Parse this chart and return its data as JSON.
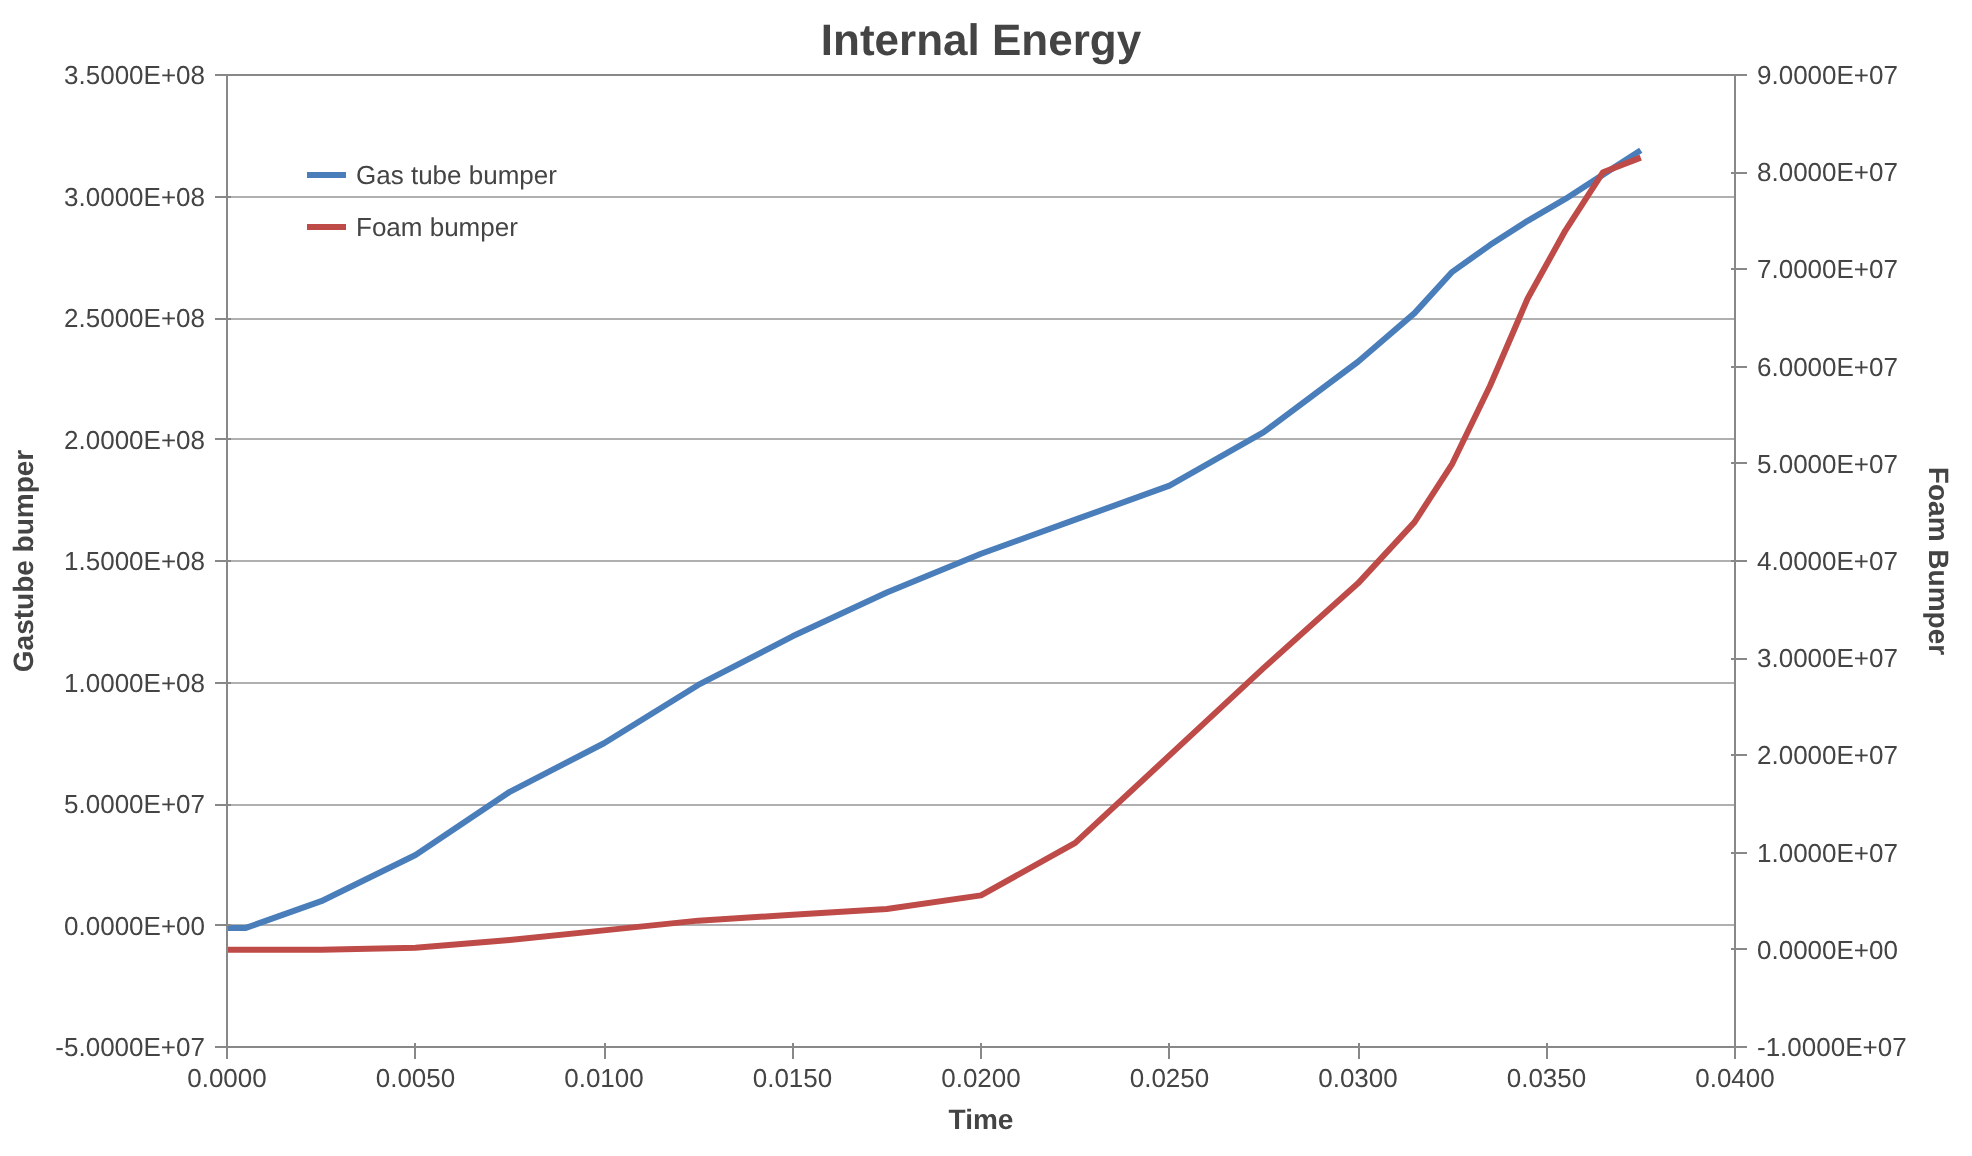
{
  "chart_data": {
    "type": "line",
    "title": "Internal Energy",
    "xlabel": "Time",
    "ylabel": "Gastube bumper",
    "y2label": "Foam Bumper",
    "x": [
      0,
      0.0005,
      0.0025,
      0.005,
      0.0075,
      0.01,
      0.0125,
      0.015,
      0.0175,
      0.02,
      0.0225,
      0.025,
      0.0275,
      0.03,
      0.0315,
      0.0325,
      0.0335,
      0.0345,
      0.0355,
      0.0365,
      0.0375
    ],
    "series": [
      {
        "name": "Gas tube bumper",
        "color": "#4a7ebb",
        "values": [
          -1000000,
          -1000000,
          10000000,
          29000000,
          55000000,
          75000000,
          99000000,
          119000000,
          137000000,
          153000000,
          167000000,
          181000000,
          203000000,
          232000000,
          252000000,
          269000000,
          280000000,
          290000000,
          299000000,
          309000000,
          319000000
        ]
      },
      {
        "name": "Foam bumper",
        "color": "#be4b48",
        "axis": "y2",
        "values": [
          0,
          0,
          0,
          200000,
          1000000,
          2000000,
          3000000,
          3600000,
          4200000,
          5600000,
          11000000,
          20000000,
          29000000,
          37700000,
          44000000,
          50000000,
          58000000,
          67000000,
          74000000,
          80000000,
          81500000
        ]
      }
    ],
    "xlim": [
      0,
      0.04
    ],
    "xticks": [
      {
        "value": 0,
        "label": "0.0000"
      },
      {
        "value": 0.005,
        "label": "0.0050"
      },
      {
        "value": 0.01,
        "label": "0.0100"
      },
      {
        "value": 0.015,
        "label": "0.0150"
      },
      {
        "value": 0.02,
        "label": "0.0200"
      },
      {
        "value": 0.025,
        "label": "0.0250"
      },
      {
        "value": 0.03,
        "label": "0.0300"
      },
      {
        "value": 0.035,
        "label": "0.0350"
      },
      {
        "value": 0.04,
        "label": "0.0400"
      }
    ],
    "ylim": [
      -50000000,
      350000000
    ],
    "yticks": [
      {
        "value": -50000000,
        "label": "-5.0000E+07"
      },
      {
        "value": 0,
        "label": "0.0000E+00"
      },
      {
        "value": 50000000,
        "label": "5.0000E+07"
      },
      {
        "value": 100000000,
        "label": "1.0000E+08"
      },
      {
        "value": 150000000,
        "label": "1.5000E+08"
      },
      {
        "value": 200000000,
        "label": "2.0000E+08"
      },
      {
        "value": 250000000,
        "label": "2.5000E+08"
      },
      {
        "value": 300000000,
        "label": "3.0000E+08"
      },
      {
        "value": 350000000,
        "label": "3.5000E+08"
      }
    ],
    "y2lim": [
      -10000000,
      90000000
    ],
    "y2ticks": [
      {
        "value": -10000000,
        "label": "-1.0000E+07"
      },
      {
        "value": 0,
        "label": "0.0000E+00"
      },
      {
        "value": 10000000,
        "label": "1.0000E+07"
      },
      {
        "value": 20000000,
        "label": "2.0000E+07"
      },
      {
        "value": 30000000,
        "label": "3.0000E+07"
      },
      {
        "value": 40000000,
        "label": "4.0000E+07"
      },
      {
        "value": 50000000,
        "label": "5.0000E+07"
      },
      {
        "value": 60000000,
        "label": "6.0000E+07"
      },
      {
        "value": 70000000,
        "label": "7.0000E+07"
      },
      {
        "value": 80000000,
        "label": "8.0000E+07"
      },
      {
        "value": 90000000,
        "label": "9.0000E+07"
      }
    ],
    "grid": "y",
    "legend": "top left",
    "marker": "none",
    "line_style": "solid"
  }
}
